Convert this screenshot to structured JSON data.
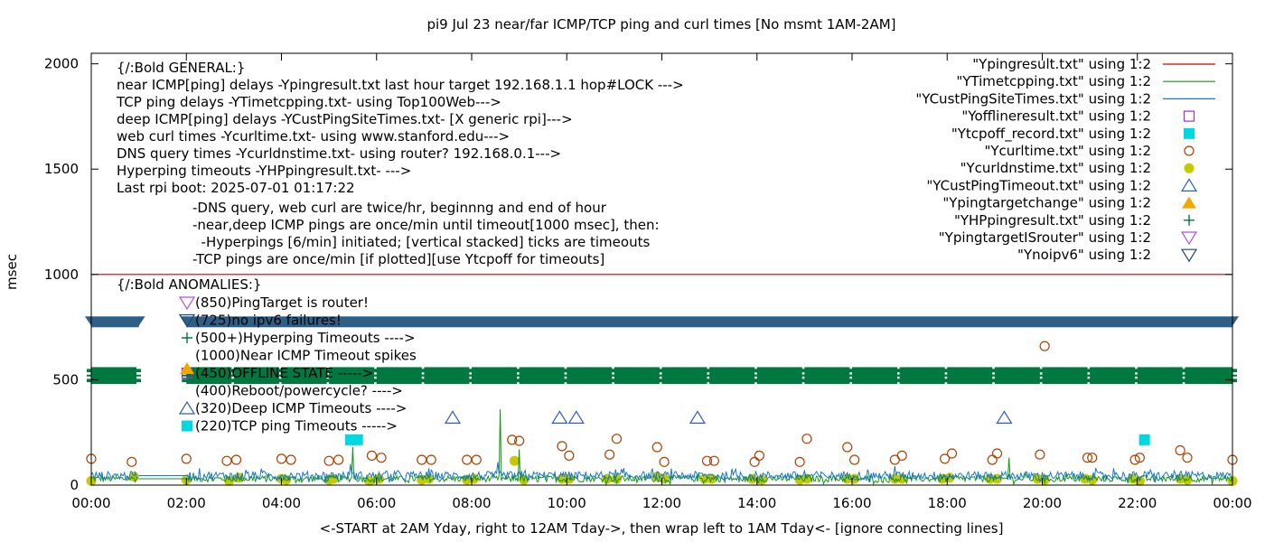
{
  "chart_data": {
    "type": "scatter",
    "title": "pi9 Jul 23  near/far ICMP/TCP ping and curl times [No msmt 1AM-2AM]",
    "xlabel": "<-START at 2AM Yday, right to 12AM Tday->, then wrap left to 1AM Tday<- [ignore connecting lines]",
    "ylabel": "msec",
    "xlim": [
      0,
      24
    ],
    "ylim": [
      0,
      2050
    ],
    "x_tick_labels": [
      "00:00",
      "02:00",
      "04:00",
      "06:00",
      "08:00",
      "10:00",
      "12:00",
      "14:00",
      "16:00",
      "18:00",
      "20:00",
      "22:00",
      "00:00"
    ],
    "y_ticks": [
      0,
      500,
      1000,
      1500,
      2000
    ],
    "y_tick_labels": [
      "0",
      "500",
      "1000",
      "1500",
      "2000"
    ],
    "grid": false,
    "legend_position": "top-right",
    "legend": [
      {
        "label": "\"Ypingresult.txt\" using 1:2",
        "style": "line",
        "color": "#cc0000"
      },
      {
        "label": "\"YTimetcpping.txt\" using 1:2",
        "style": "line",
        "color": "#109910"
      },
      {
        "label": "\"YCustPingSiteTimes.txt\" using 1:2",
        "style": "line",
        "color": "#1a78c8"
      },
      {
        "label": "\"Yofflineresult.txt\" using 1:2",
        "style": "open-square",
        "color": "#9b30c8"
      },
      {
        "label": "\"Ytcpoff_record.txt\" using 1:2",
        "style": "filled-square",
        "color": "#00d8e0"
      },
      {
        "label": "\"Ycurltime.txt\" using 1:2",
        "style": "open-circle",
        "color": "#b04000"
      },
      {
        "label": "\"Ycurldnstime.txt\" using 1:2",
        "style": "filled-circle",
        "color": "#c8c800"
      },
      {
        "label": "\"YCustPingTimeout.txt\" using 1:2",
        "style": "open-triangle",
        "color": "#3060b8"
      },
      {
        "label": "\"Ypingtargetchange\" using 1:2",
        "style": "filled-triangle",
        "color": "#f0a800"
      },
      {
        "label": "\"YHPpingresult.txt\" using 1:2",
        "style": "plus",
        "color": "#007840"
      },
      {
        "label": "\"YpingtargetISrouter\" using 1:2",
        "style": "open-down-triangle",
        "color": "#b050e0"
      },
      {
        "label": "\"Ynoipv6\" using 1:2",
        "style": "open-down-triangle",
        "color": "#1a4878"
      }
    ],
    "annotations_general": [
      "{/:Bold GENERAL:}",
      "near ICMP[ping] delays -Ypingresult.txt last hour target 192.168.1.1 hop#LOCK --->",
      "TCP ping delays -YTimetcpping.txt- using Top100Web--->",
      "deep ICMP[ping] delays -YCustPingSiteTimes.txt- [X generic rpi]--->",
      "web curl times -Ycurltime.txt- using www.stanford.edu--->",
      "DNS query times -Ycurldnstime.txt- using router? 192.168.0.1--->",
      "Hyperping timeouts -YHPpingresult.txt- --->",
      "Last rpi boot: 2025-07-01 01:17:22"
    ],
    "annotations_notes": [
      "-DNS query, web curl are twice/hr, beginnng and end of hour",
      "-near,deep ICMP pings are once/min until timeout[1000 msec], then:",
      "  -Hyperpings [6/min] initiated; [vertical stacked] ticks are timeouts",
      "-TCP pings are once/min [if plotted][use Ytcpoff for timeouts]"
    ],
    "annotations_anomalies_title": "{/:Bold ANOMALIES:}",
    "annotations_anomalies": [
      {
        "y": 850,
        "text": "(850)PingTarget is router!"
      },
      {
        "y": 725,
        "text": "(725)no ipv6 failures!"
      },
      {
        "y": 500,
        "text": "(500+)Hyperping Timeouts ---->"
      },
      {
        "y": 1000,
        "text": "(1000)Near ICMP Timeout spikes"
      },
      {
        "y": 450,
        "text": "(450)OFFLINE STATE ----->"
      },
      {
        "y": 400,
        "text": "(400)Reboot/powercycle? ---->"
      },
      {
        "y": 320,
        "text": "(320)Deep ICMP Timeouts ---->"
      },
      {
        "y": 220,
        "text": "(220)TCP ping Timeouts ----->"
      }
    ],
    "series": [
      {
        "name": "\"Ypingresult.txt\" using 1:2",
        "style": "line",
        "color": "#cc0000",
        "x": [
          0,
          24
        ],
        "y": [
          1000,
          1000
        ]
      },
      {
        "name": "\"Ynoipv6\" using 1:2",
        "style": "band",
        "color": "#2e5f86",
        "segments": [
          [
            0,
            1.0
          ],
          [
            2.0,
            24
          ]
        ],
        "y": 775
      },
      {
        "name": "\"YHPpingresult.txt\" using 1:2",
        "style": "band",
        "color": "#007840",
        "segments": [
          [
            0,
            0.95
          ],
          [
            2.0,
            2.95
          ],
          [
            3.0,
            3.95
          ],
          [
            4.0,
            4.95
          ],
          [
            5.0,
            5.95
          ],
          [
            6.0,
            6.95
          ],
          [
            7.0,
            7.95
          ],
          [
            8.0,
            8.95
          ],
          [
            9.0,
            9.95
          ],
          [
            10.0,
            10.95
          ],
          [
            11.0,
            11.95
          ],
          [
            12.0,
            12.95
          ],
          [
            13.0,
            13.95
          ],
          [
            14.0,
            14.95
          ],
          [
            15.0,
            15.95
          ],
          [
            16.0,
            16.95
          ],
          [
            17.0,
            17.95
          ],
          [
            18.0,
            18.95
          ],
          [
            19.0,
            19.95
          ],
          [
            20.0,
            20.95
          ],
          [
            21.0,
            21.95
          ],
          [
            22.0,
            22.95
          ],
          [
            23.0,
            24.0
          ]
        ],
        "y_range": [
          480,
          560
        ]
      },
      {
        "name": "\"Ycurltime.txt\" using 1:2",
        "style": "open-circle",
        "color": "#b04000",
        "points": [
          [
            0.0,
            125
          ],
          [
            0.85,
            110
          ],
          [
            2.0,
            125
          ],
          [
            2.85,
            115
          ],
          [
            3.05,
            120
          ],
          [
            4.0,
            125
          ],
          [
            4.2,
            120
          ],
          [
            5.0,
            115
          ],
          [
            5.2,
            120
          ],
          [
            5.9,
            140
          ],
          [
            6.1,
            130
          ],
          [
            6.95,
            120
          ],
          [
            7.15,
            120
          ],
          [
            7.9,
            120
          ],
          [
            8.1,
            120
          ],
          [
            8.85,
            215
          ],
          [
            9.0,
            210
          ],
          [
            9.9,
            185
          ],
          [
            10.05,
            140
          ],
          [
            10.9,
            145
          ],
          [
            11.05,
            220
          ],
          [
            11.9,
            180
          ],
          [
            12.05,
            110
          ],
          [
            12.95,
            115
          ],
          [
            13.1,
            115
          ],
          [
            13.95,
            110
          ],
          [
            14.05,
            140
          ],
          [
            14.9,
            110
          ],
          [
            15.05,
            220
          ],
          [
            15.9,
            180
          ],
          [
            16.05,
            120
          ],
          [
            16.9,
            120
          ],
          [
            17.05,
            140
          ],
          [
            17.95,
            125
          ],
          [
            18.1,
            150
          ],
          [
            18.95,
            120
          ],
          [
            19.05,
            150
          ],
          [
            19.95,
            145
          ],
          [
            20.05,
            660
          ],
          [
            20.95,
            130
          ],
          [
            21.05,
            130
          ],
          [
            21.95,
            120
          ],
          [
            22.05,
            130
          ],
          [
            22.9,
            165
          ],
          [
            23.05,
            130
          ],
          [
            24.0,
            120
          ]
        ]
      },
      {
        "name": "\"Ycurldnstime.txt\" using 1:2",
        "style": "filled-circle",
        "color": "#c8c800",
        "points": [
          [
            0.0,
            20
          ],
          [
            0.9,
            40
          ],
          [
            2.0,
            25
          ],
          [
            2.9,
            20
          ],
          [
            3.1,
            35
          ],
          [
            4.0,
            30
          ],
          [
            4.1,
            25
          ],
          [
            5.0,
            25
          ],
          [
            5.1,
            30
          ],
          [
            5.85,
            20
          ],
          [
            6.05,
            30
          ],
          [
            6.95,
            25
          ],
          [
            7.1,
            30
          ],
          [
            7.9,
            25
          ],
          [
            8.05,
            30
          ],
          [
            8.9,
            115
          ],
          [
            9.1,
            25
          ],
          [
            9.9,
            30
          ],
          [
            10.05,
            30
          ],
          [
            10.85,
            30
          ],
          [
            11.05,
            30
          ],
          [
            11.9,
            40
          ],
          [
            12.05,
            30
          ],
          [
            12.9,
            30
          ],
          [
            13.05,
            30
          ],
          [
            13.9,
            30
          ],
          [
            14.1,
            25
          ],
          [
            14.9,
            25
          ],
          [
            15.05,
            30
          ],
          [
            15.9,
            30
          ],
          [
            16.05,
            30
          ],
          [
            16.9,
            30
          ],
          [
            17.05,
            30
          ],
          [
            17.9,
            30
          ],
          [
            18.05,
            35
          ],
          [
            18.9,
            30
          ],
          [
            19.05,
            30
          ],
          [
            19.9,
            30
          ],
          [
            20.05,
            25
          ],
          [
            20.9,
            30
          ],
          [
            21.05,
            25
          ],
          [
            21.9,
            30
          ],
          [
            22.05,
            20
          ],
          [
            22.9,
            30
          ],
          [
            23.05,
            25
          ],
          [
            24.0,
            20
          ]
        ]
      },
      {
        "name": "\"YCustPingTimeout.txt\" using 1:2",
        "style": "open-triangle",
        "color": "#3060b8",
        "points": [
          [
            7.6,
            320
          ],
          [
            9.85,
            320
          ],
          [
            10.2,
            320
          ],
          [
            12.75,
            320
          ],
          [
            19.2,
            320
          ]
        ]
      },
      {
        "name": "\"Ytcpoff_record.txt\" using 1:2",
        "style": "filled-square",
        "color": "#00d8e0",
        "points": [
          [
            5.45,
            215
          ],
          [
            5.6,
            215
          ],
          [
            22.15,
            215
          ]
        ]
      },
      {
        "name": "\"YTimetcpping.txt\" using 1:2",
        "style": "noise-line",
        "color": "#109910",
        "base": 30,
        "noise": 15,
        "spikes": [
          [
            5.5,
            180
          ],
          [
            8.6,
            360
          ],
          [
            9.0,
            170
          ],
          [
            19.3,
            130
          ]
        ]
      },
      {
        "name": "\"YCustPingSiteTimes.txt\" using 1:2",
        "style": "noise-line",
        "color": "#1a78c8",
        "base": 45,
        "noise": 20,
        "spikes": [
          [
            5.45,
            100
          ],
          [
            8.55,
            110
          ],
          [
            16.9,
            90
          ],
          [
            21.5,
            80
          ]
        ]
      }
    ]
  }
}
